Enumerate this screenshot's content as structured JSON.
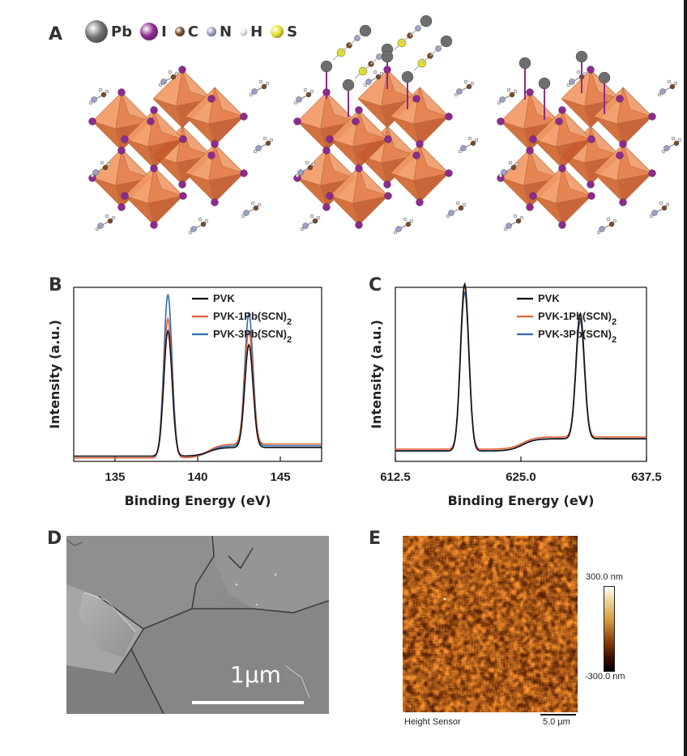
{
  "panels": {
    "a": "A",
    "b": "B",
    "c": "C",
    "d": "D",
    "e": "E"
  },
  "atom_legend": [
    {
      "symbol": "Pb",
      "color": "#6e6e6e",
      "size": 28
    },
    {
      "symbol": "I",
      "color": "#8e2a8f",
      "size": 22
    },
    {
      "symbol": "C",
      "color": "#7a4a28",
      "size": 12
    },
    {
      "symbol": "N",
      "color": "#9aa0c8",
      "size": 12
    },
    {
      "symbol": "H",
      "color": "#e6e6e6",
      "size": 9
    },
    {
      "symbol": "S",
      "color": "#e5e02a",
      "size": 16
    }
  ],
  "colors": {
    "pvk": "#111111",
    "pvk1": "#e0603a",
    "pvk3": "#2f6db0",
    "octahedron": "#e27a45"
  },
  "chart_data": [
    {
      "type": "line",
      "panel": "B",
      "xlabel": "Binding Energy (eV)",
      "ylabel": "Intensity (a.u.)",
      "xlim": [
        132.5,
        147.5
      ],
      "xticks": [
        "135",
        "140",
        "145"
      ],
      "xtick_values": [
        135,
        140,
        145
      ],
      "legend_position": "top-right",
      "peaks": [
        138.2,
        143.1
      ],
      "series": [
        {
          "name": "PVK",
          "key": "pvk",
          "peak_heights": [
            0.72,
            0.59
          ],
          "baseline": [
            0.03,
            0.08
          ]
        },
        {
          "name": "PVK-1Pb(SCN)2",
          "key": "pvk1",
          "peak_heights": [
            0.8,
            0.65
          ],
          "baseline": [
            0.02,
            0.1
          ]
        },
        {
          "name": "PVK-3Pb(SCN)2",
          "key": "pvk3",
          "peak_heights": [
            0.94,
            0.76
          ],
          "baseline": [
            0.02,
            0.09
          ]
        }
      ]
    },
    {
      "type": "line",
      "panel": "C",
      "xlabel": "Binding Energy (eV)",
      "ylabel": "Intensity (a.u.)",
      "xlim": [
        612.5,
        637.5
      ],
      "xticks": [
        "612.5",
        "625.0",
        "637.5"
      ],
      "xtick_values": [
        612.5,
        625.0,
        637.5
      ],
      "legend_position": "top-right",
      "peaks": [
        619.4,
        630.9
      ],
      "series": [
        {
          "name": "PVK",
          "key": "pvk",
          "peak_heights": [
            0.96,
            0.72
          ],
          "baseline": [
            0.06,
            0.13
          ]
        },
        {
          "name": "PVK-1Pb(SCN)2",
          "key": "pvk1",
          "peak_heights": [
            0.94,
            0.71
          ],
          "baseline": [
            0.07,
            0.14
          ]
        },
        {
          "name": "PVK-3Pb(SCN)2",
          "key": "pvk3",
          "peak_heights": [
            0.91,
            0.68
          ],
          "baseline": [
            0.06,
            0.13
          ]
        }
      ]
    }
  ],
  "sem": {
    "scale_label": "1μm"
  },
  "afm": {
    "max_label": "300.0 nm",
    "min_label": "-300.0 nm",
    "channel_label": "Height Sensor",
    "scale_label": "5.0 μm"
  }
}
